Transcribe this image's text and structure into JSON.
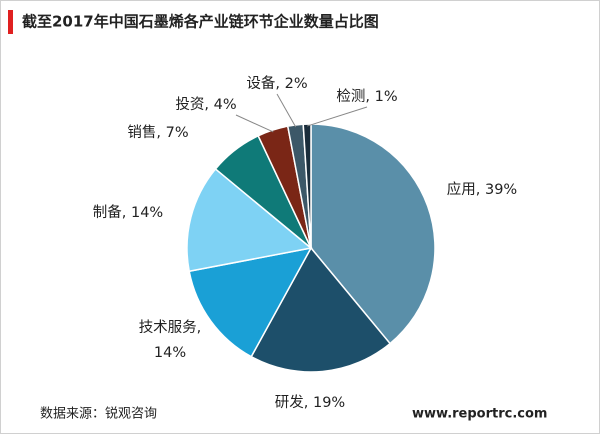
{
  "chart_data": {
    "type": "pie",
    "title": "截至2017年中国石墨烯各产业链环节企业数量占比图",
    "labels": [
      "应用, 39%",
      "研发, 19%",
      "技术服务,\n14%",
      "制备, 14%",
      "销售, 7%",
      "投资, 4%",
      "设备, 2%",
      "检测, 1%"
    ],
    "values": [
      39,
      19,
      14,
      14,
      7,
      4,
      2,
      1
    ],
    "colors": [
      "#5a8fa9",
      "#1d4f6a",
      "#1aa0d6",
      "#7ed2f4",
      "#0f7a78",
      "#7a2616",
      "#3c5868",
      "#1a2d3b"
    ],
    "source": "数据来源：锐观咨询",
    "website": "www.reportrc.com"
  }
}
